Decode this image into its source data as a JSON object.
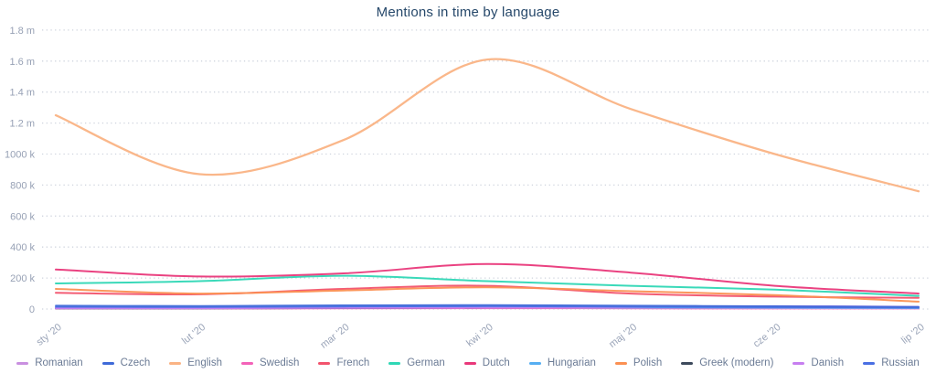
{
  "title": "Mentions in time by language",
  "chart_data": {
    "type": "line",
    "title": "Mentions in time by language",
    "x": [
      "sty '20",
      "lut '20",
      "mar '20",
      "kwi '20",
      "maj '20",
      "cze '20",
      "lip '20"
    ],
    "y_unit": "mentions",
    "ylim_k": [
      0,
      1800
    ],
    "grid": "horizontal-dotted",
    "legend_position": "bottom",
    "y_ticks": [
      {
        "v": 1800,
        "label": "1.8 m"
      },
      {
        "v": 1600,
        "label": "1.6 m"
      },
      {
        "v": 1400,
        "label": "1.4 m"
      },
      {
        "v": 1200,
        "label": "1.2 m"
      },
      {
        "v": 1000,
        "label": "1000 k"
      },
      {
        "v": 800,
        "label": "800 k"
      },
      {
        "v": 600,
        "label": "600 k"
      },
      {
        "v": 400,
        "label": "400 k"
      },
      {
        "v": 200,
        "label": "200 k"
      },
      {
        "v": 0,
        "label": "0"
      }
    ],
    "series": [
      {
        "name": "Romanian",
        "color": "#c98fe0",
        "values_k": [
          7,
          6,
          8,
          9,
          7,
          6,
          4
        ]
      },
      {
        "name": "Czech",
        "color": "#3f6ad8",
        "values_k": [
          22,
          20,
          24,
          26,
          22,
          18,
          14
        ]
      },
      {
        "name": "English",
        "color": "#fab384",
        "values_k": [
          1250,
          870,
          1090,
          1610,
          1290,
          1000,
          760
        ]
      },
      {
        "name": "Swedish",
        "color": "#f362b8",
        "values_k": [
          3,
          3,
          4,
          5,
          4,
          3,
          3
        ]
      },
      {
        "name": "French",
        "color": "#f2536d",
        "values_k": [
          105,
          95,
          130,
          150,
          100,
          80,
          72
        ]
      },
      {
        "name": "German",
        "color": "#2fd7b5",
        "values_k": [
          165,
          180,
          215,
          180,
          150,
          125,
          85
        ]
      },
      {
        "name": "Dutch",
        "color": "#e9387a",
        "values_k": [
          255,
          210,
          230,
          290,
          235,
          150,
          100
        ]
      },
      {
        "name": "Hungarian",
        "color": "#56aef2",
        "values_k": [
          9,
          8,
          11,
          12,
          10,
          8,
          6
        ]
      },
      {
        "name": "Polish",
        "color": "#fb9052",
        "values_k": [
          130,
          100,
          120,
          140,
          115,
          90,
          48
        ]
      },
      {
        "name": "Greek (modern)",
        "color": "#3d4a5c",
        "values_k": [
          4,
          4,
          6,
          8,
          13,
          18,
          7
        ]
      },
      {
        "name": "Danish",
        "color": "#c77ef0",
        "values_k": [
          5,
          5,
          7,
          9,
          13,
          19,
          15
        ]
      },
      {
        "name": "Russian",
        "color": "#4a6fe3",
        "values_k": [
          14,
          13,
          16,
          18,
          15,
          12,
          9
        ]
      }
    ],
    "draw_order": [
      "Swedish",
      "Greek (modern)",
      "Romanian",
      "Hungarian",
      "Danish",
      "Russian",
      "Czech",
      "French",
      "Polish",
      "German",
      "Dutch",
      "English"
    ]
  },
  "style": {
    "grid_color": "#cfd4de",
    "title_color": "#26486a",
    "axis_label_color": "#97a1b5",
    "legend_label_color": "#6b7b95"
  }
}
